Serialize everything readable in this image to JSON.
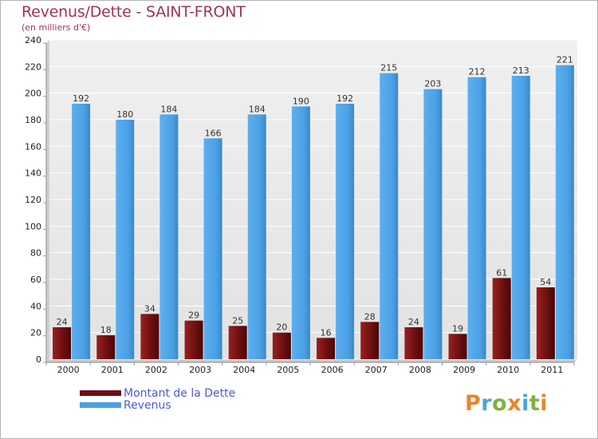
{
  "chart_data": {
    "type": "bar",
    "title": "Revenus/Dette - SAINT-FRONT",
    "subtitle": "(en milliers d'€)",
    "categories": [
      "2000",
      "2001",
      "2002",
      "2003",
      "2004",
      "2005",
      "2006",
      "2007",
      "2008",
      "2009",
      "2010",
      "2011"
    ],
    "series": [
      {
        "name": "Montant de la Dette",
        "color": "#7a1414",
        "values": [
          24,
          18,
          34,
          29,
          25,
          20,
          16,
          28,
          24,
          19,
          61,
          54
        ]
      },
      {
        "name": "Revenus",
        "color": "#4a9fe3",
        "values": [
          192,
          180,
          184,
          166,
          184,
          190,
          192,
          215,
          203,
          212,
          213,
          221
        ]
      }
    ],
    "ylim": [
      0,
      240
    ],
    "yticks": [
      0,
      20,
      40,
      60,
      80,
      100,
      120,
      140,
      160,
      180,
      200,
      220,
      240
    ],
    "grid": true,
    "legend_position": "bottom-left"
  },
  "logo": {
    "text": "Proxiti",
    "colors": [
      "#e8862a",
      "#4aa3df",
      "#7cb342",
      "#e8862a",
      "#4aa3df",
      "#7cb342",
      "#e8862a"
    ]
  }
}
